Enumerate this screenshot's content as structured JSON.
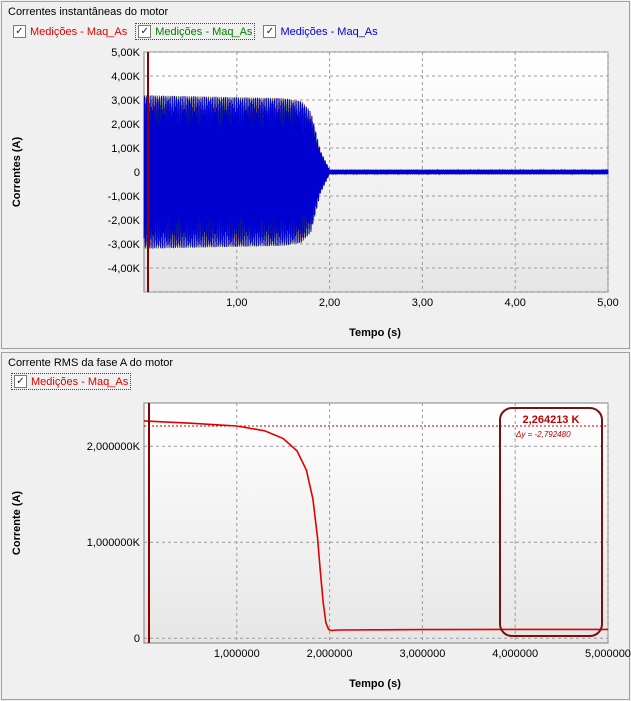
{
  "charts": {
    "top": {
      "panel_title": "Correntes instantâneas do motor",
      "legend": [
        {
          "label": "Medições - Maq_As",
          "color": "#e00000",
          "checked": true
        },
        {
          "label": "Medições - Maq_As",
          "color": "#008000",
          "checked": true
        },
        {
          "label": "Medições - Maq_As",
          "color": "#0000d0",
          "checked": true
        }
      ]
    },
    "bottom": {
      "panel_title": "Corrente RMS da fase A do motor",
      "legend": [
        {
          "label": "Medições - Maq_As",
          "color": "#e00000",
          "checked": true
        }
      ],
      "cursor_readout": {
        "value": "2,264213 K",
        "delta": "Δy = -2,792480"
      }
    }
  },
  "chart_data": [
    {
      "type": "line",
      "title": "Correntes instantâneas do motor",
      "xlabel": "Tempo (s)",
      "ylabel": "Correntes (A)",
      "xlim": [
        0,
        5
      ],
      "ylim": [
        -5000,
        5000
      ],
      "x_ticks": [
        "1,00",
        "2,00",
        "3,00",
        "4,00",
        "5,00"
      ],
      "y_ticks": [
        "5,00K",
        "4,00K",
        "3,00K",
        "2,00K",
        "1,00K",
        "0",
        "-1,00K",
        "-2,00K",
        "-3,00K",
        "-4,00K"
      ],
      "grid": true,
      "series": [
        {
          "name": "Medições - Maq_As",
          "color": "#e00000",
          "envelope": {
            "t": [
              0.0,
              0.5,
              1.0,
              1.5,
              1.7,
              1.8,
              1.9,
              2.0,
              5.0
            ],
            "amp": [
              3200,
              3160,
              3120,
              3080,
              2950,
              2500,
              900,
              100,
              100
            ]
          }
        },
        {
          "name": "Medições - Maq_As",
          "color": "#008000",
          "envelope": {
            "t": [
              0.0,
              0.5,
              1.0,
              1.5,
              1.7,
              1.8,
              1.9,
              2.0,
              5.0
            ],
            "amp": [
              3200,
              3160,
              3120,
              3080,
              2950,
              2500,
              900,
              100,
              100
            ]
          }
        },
        {
          "name": "Medições - Maq_As",
          "color": "#0000d0",
          "envelope": {
            "t": [
              0.0,
              0.5,
              1.0,
              1.5,
              1.7,
              1.8,
              1.9,
              2.0,
              5.0
            ],
            "amp": [
              3200,
              3160,
              3120,
              3080,
              2950,
              2500,
              900,
              100,
              100
            ]
          }
        }
      ]
    },
    {
      "type": "line",
      "title": "Corrente RMS da fase A do motor",
      "xlabel": "Tempo (s)",
      "ylabel": "Corrente (A)",
      "xlim": [
        0,
        5
      ],
      "ylim": [
        -50,
        2450
      ],
      "x_ticks": [
        "1,000000",
        "2,000000",
        "3,000000",
        "4,000000",
        "5,000000"
      ],
      "y_ticks": [
        "2,000000K",
        "1,000000K",
        "0"
      ],
      "grid": true,
      "series": [
        {
          "name": "Medições - Maq_As",
          "color": "#e00000",
          "x": [
            0.0,
            0.5,
            1.0,
            1.3,
            1.5,
            1.65,
            1.75,
            1.82,
            1.87,
            1.9,
            1.93,
            1.96,
            1.99,
            2.02,
            2.1,
            2.5,
            3.0,
            4.0,
            5.0
          ],
          "y": [
            2264,
            2240,
            2210,
            2160,
            2080,
            1950,
            1750,
            1450,
            1050,
            700,
            380,
            160,
            90,
            80,
            85,
            88,
            90,
            92,
            92
          ]
        }
      ],
      "cursor": {
        "x": 0.05,
        "y": 2264.213,
        "label": "2,264213 K",
        "delta": "Δy = -2,792480"
      }
    }
  ]
}
